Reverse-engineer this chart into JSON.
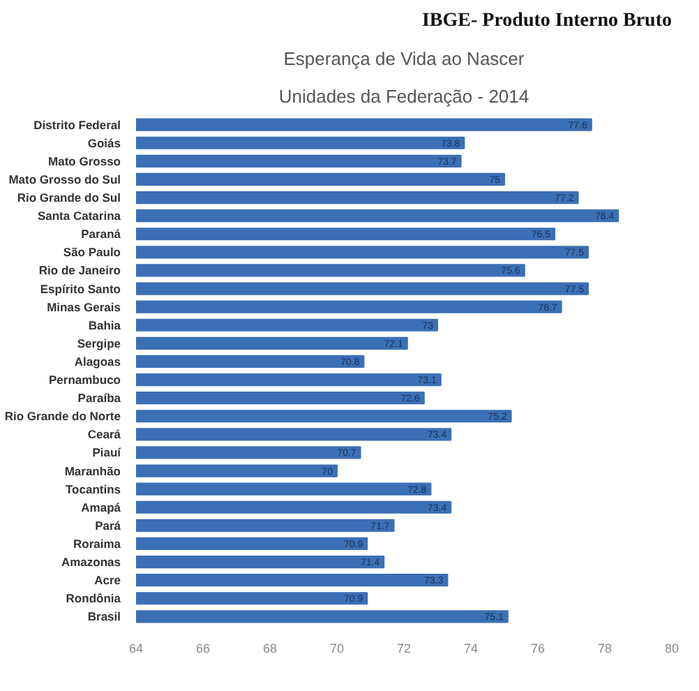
{
  "chart_data": {
    "type": "bar",
    "orientation": "horizontal",
    "title": "Esperança de Vida ao Nascer",
    "subtitle": "Unidades da Federação - 2014",
    "annotations": [
      "IBGE- Produto Interno Bruto"
    ],
    "categories": [
      "Distrito Federal",
      "Goiás",
      "Mato Grosso",
      "Mato Grosso do Sul",
      "Rio Grande do Sul",
      "Santa Catarina",
      "Paraná",
      "São Paulo",
      "Rio de Janeiro",
      "Espírito Santo",
      "Minas Gerais",
      "Bahia",
      "Sergipe",
      "Alagoas",
      "Pernambuco",
      "Paraíba",
      "Rio Grande do Norte",
      "Ceará",
      "Piauí",
      "Maranhão",
      "Tocantins",
      "Amapá",
      "Pará",
      "Roraima",
      "Amazonas",
      "Acre",
      "Rondônia",
      "Brasil"
    ],
    "values": [
      77.6,
      73.8,
      73.7,
      75.0,
      77.2,
      78.4,
      76.5,
      77.5,
      75.6,
      77.5,
      76.7,
      73.0,
      72.1,
      70.8,
      73.1,
      72.6,
      75.2,
      73.4,
      70.7,
      70.0,
      72.8,
      73.4,
      71.7,
      70.9,
      71.4,
      73.3,
      70.9,
      75.1
    ],
    "value_labels": [
      "77.6",
      "73.8",
      "73.7",
      "75",
      "77.2",
      "78.4",
      "76.5",
      "77.5",
      "75.6",
      "77.5",
      "76.7",
      "73",
      "72.1",
      "70.8",
      "73.1",
      "72.6",
      "75.2",
      "73.4",
      "70.7",
      "70",
      "72.8",
      "73.4",
      "71.7",
      "70.9",
      "71.4",
      "73.3",
      "70.9",
      "75.1"
    ],
    "color": "#3b6fb6",
    "xlim": [
      64,
      80
    ],
    "xticks": [
      64,
      66,
      68,
      70,
      72,
      74,
      76,
      78,
      80
    ],
    "grid": false
  }
}
